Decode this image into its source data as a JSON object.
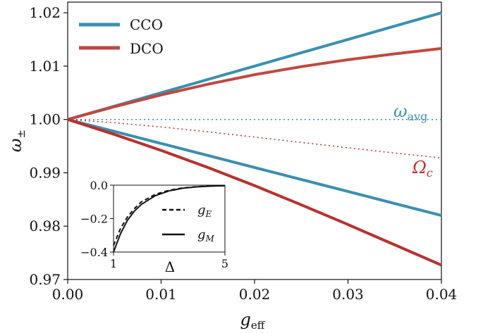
{
  "chart_data": [
    {
      "type": "line",
      "title": "",
      "xlabel": "g_eff",
      "ylabel": "ω±",
      "xlim": [
        0.0,
        0.04
      ],
      "ylim": [
        0.97,
        1.022
      ],
      "xticks": [
        "0.00",
        "0.01",
        "0.02",
        "0.03",
        "0.04"
      ],
      "yticks": [
        "0.97",
        "0.98",
        "0.99",
        "1.00",
        "1.01",
        "1.02"
      ],
      "legend": {
        "placement": "top-left",
        "entries": [
          "CCO",
          "DCO"
        ]
      },
      "colors": {
        "cco": "#3a8fb0",
        "dco": "#b8312d",
        "dco_upper": "#c2473f"
      },
      "x": [
        0.0,
        0.005,
        0.01,
        0.015,
        0.02,
        0.025,
        0.03,
        0.035,
        0.04
      ],
      "series": [
        {
          "name": "CCO",
          "color": "#3a8fb0",
          "width": 4,
          "dash": "none",
          "values": [
            1.0,
            1.0025,
            1.005,
            1.0075,
            1.01,
            1.0125,
            1.015,
            1.0175,
            1.02
          ]
        },
        {
          "name": "CCO",
          "color": "#3a8fb0",
          "width": 4,
          "dash": "none",
          "values": [
            1.0,
            0.99775,
            0.9955,
            0.99325,
            0.991,
            0.98875,
            0.9865,
            0.98425,
            0.982
          ]
        },
        {
          "name": "DCO",
          "color": "#c2473f",
          "width": 4,
          "dash": "none",
          "values": [
            1.0,
            1.0024,
            1.0046,
            1.0066,
            1.0084,
            1.0099,
            1.0112,
            1.0123,
            1.0133
          ]
        },
        {
          "name": "DCO",
          "color": "#b8312d",
          "width": 4,
          "dash": "none",
          "values": [
            1.0,
            0.9972,
            0.9942,
            0.991,
            0.9876,
            0.984,
            0.9803,
            0.9765,
            0.9727
          ]
        },
        {
          "color": "#3a8fb0",
          "width": 1.5,
          "dash": "2,4",
          "values": [
            1.0,
            1.0,
            1.0,
            1.0,
            1.0,
            1.0,
            1.0,
            1.0,
            1.0
          ]
        },
        {
          "color": "#b8312d",
          "width": 1.5,
          "dash": "2,4",
          "values": [
            1.0,
            0.9994,
            0.9986,
            0.9977,
            0.9967,
            0.9957,
            0.9947,
            0.9937,
            0.9928
          ]
        }
      ],
      "annotations": [
        {
          "text": "ω_avg",
          "color": "#3a8fb0"
        },
        {
          "text": "Ω_c",
          "color": "#b8312d"
        }
      ]
    },
    {
      "type": "line",
      "title": "",
      "xlabel": "Δ",
      "ylabel": "",
      "xlim": [
        1,
        5
      ],
      "ylim": [
        -0.4,
        0.0
      ],
      "xticks": [
        "1",
        "5"
      ],
      "yticks": [
        "0.0",
        "−0.2",
        "−0.4"
      ],
      "legend": {
        "placement": "right",
        "entries": [
          "g_E",
          "g_M"
        ]
      },
      "x": [
        1.0,
        1.25,
        1.5,
        1.75,
        2.0,
        2.5,
        3.0,
        3.5,
        4.0,
        4.5,
        5.0
      ],
      "series": [
        {
          "name": "g_E",
          "dash": "6,4",
          "values": [
            -0.36,
            -0.26,
            -0.19,
            -0.14,
            -0.1,
            -0.055,
            -0.03,
            -0.016,
            -0.009,
            -0.005,
            -0.003
          ]
        },
        {
          "name": "g_M",
          "dash": "none",
          "values": [
            -0.4,
            -0.29,
            -0.21,
            -0.155,
            -0.115,
            -0.063,
            -0.034,
            -0.018,
            -0.01,
            -0.006,
            -0.003
          ]
        }
      ]
    }
  ]
}
